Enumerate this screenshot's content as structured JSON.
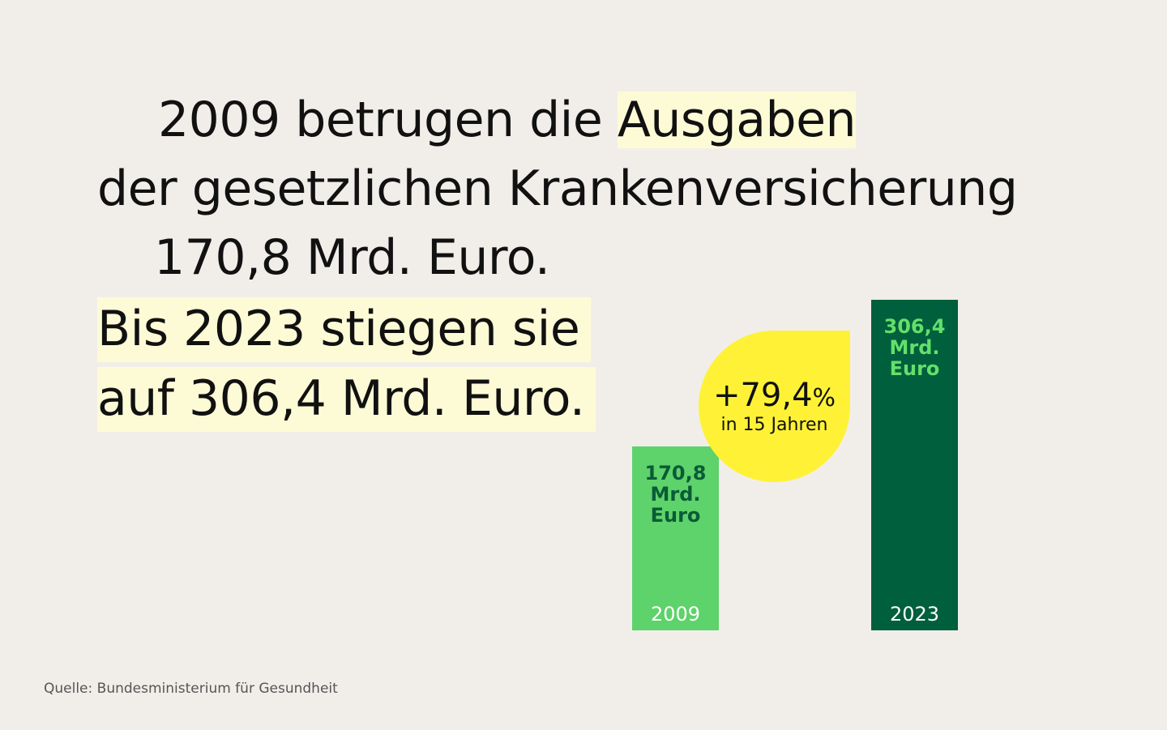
{
  "headline": {
    "line1_pre": "2009 betrugen die ",
    "line1_hl": "Ausgaben",
    "line2": "der gesetzlichen Krankenversicherung",
    "line3": "170,8 Mrd. Euro.",
    "line4": "Bis 2023 stiegen sie",
    "line5": "auf 306,4 Mrd. Euro."
  },
  "chart_data": {
    "type": "bar",
    "categories": [
      "2009",
      "2023"
    ],
    "values": [
      170.8,
      306.4
    ],
    "value_labels": [
      "170,8\nMrd.\nEuro",
      "306,4\nMrd.\nEuro"
    ],
    "colors": [
      "#5ed26b",
      "#005f3c"
    ],
    "value_label_colors": [
      "#0a5b36",
      "#63e06a"
    ],
    "ylim": [
      0,
      306.4
    ],
    "annotation": {
      "sign": "+",
      "value": "79,4",
      "unit": "%",
      "subtitle": "in 15 Jahren",
      "color": "#fff236"
    }
  },
  "source": "Quelle: Bundesministerium für Gesundheit"
}
